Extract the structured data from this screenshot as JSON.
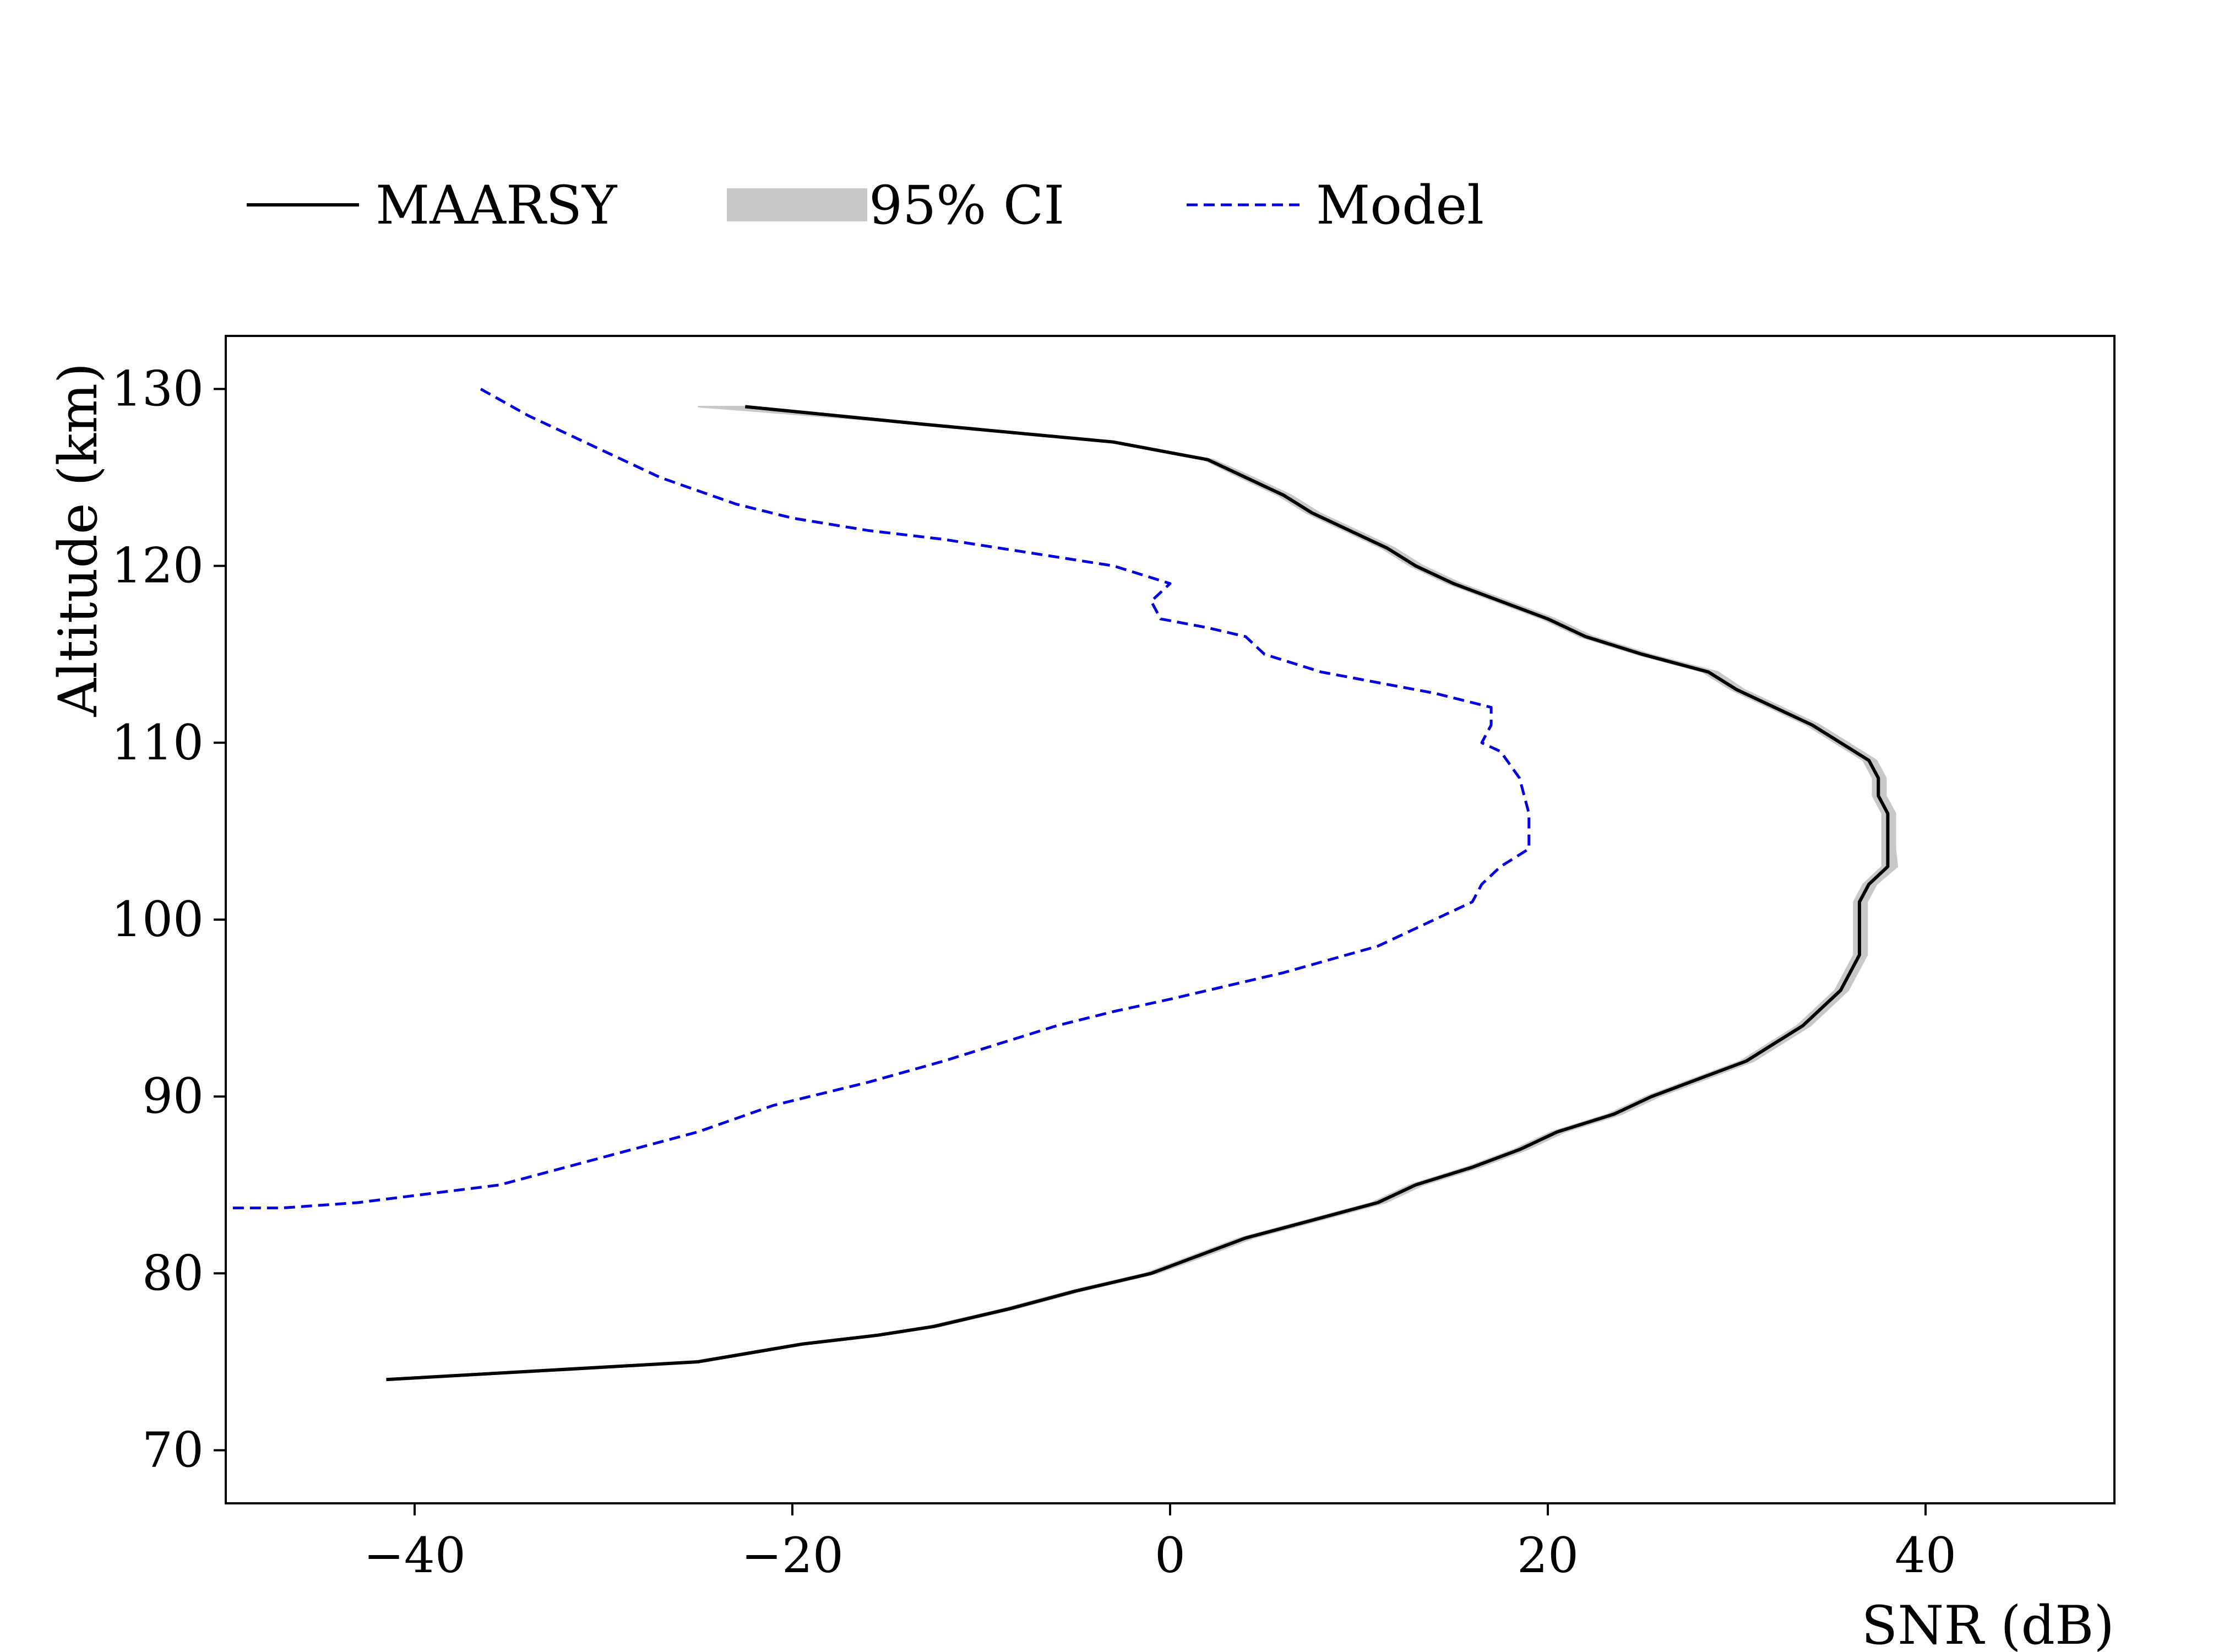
{
  "chart_data": {
    "type": "line",
    "title": "",
    "xlabel": "SNR (dB)",
    "ylabel": "Altitude (km)",
    "xlim": [
      -50,
      50
    ],
    "ylim": [
      67,
      133
    ],
    "xticks": [
      -40,
      -20,
      0,
      20,
      40
    ],
    "xtick_labels": [
      "−40",
      "−20",
      "0",
      "20",
      "40"
    ],
    "yticks": [
      70,
      80,
      90,
      100,
      110,
      120,
      130
    ],
    "ytick_labels": [
      "70",
      "80",
      "90",
      "100",
      "110",
      "120",
      "130"
    ],
    "grid": false,
    "legend_position": "top, outside plot",
    "legend": [
      {
        "key": "maarsy",
        "label": "MAARSY",
        "style": "solid",
        "color": "#000000"
      },
      {
        "key": "ci",
        "label": "95% CI",
        "style": "band",
        "color": "#c8c8c8"
      },
      {
        "key": "model",
        "label": "Model",
        "style": "dashed",
        "color": "#0000e0"
      }
    ],
    "series": [
      {
        "name": "MAARSY",
        "color": "#000000",
        "points": [
          [
            -22.5,
            129
          ],
          [
            -13,
            128
          ],
          [
            -3,
            127
          ],
          [
            2,
            126
          ],
          [
            4,
            125
          ],
          [
            6,
            124
          ],
          [
            7.5,
            123
          ],
          [
            9.5,
            122
          ],
          [
            11.5,
            121
          ],
          [
            13,
            120
          ],
          [
            15,
            119
          ],
          [
            17.5,
            118
          ],
          [
            20,
            117
          ],
          [
            22,
            116
          ],
          [
            25,
            115
          ],
          [
            28.5,
            114
          ],
          [
            30,
            113
          ],
          [
            32,
            112
          ],
          [
            34,
            111
          ],
          [
            35.5,
            110
          ],
          [
            37,
            109
          ],
          [
            37.5,
            108
          ],
          [
            37.5,
            107
          ],
          [
            38,
            106
          ],
          [
            38,
            105
          ],
          [
            38,
            104
          ],
          [
            38,
            103
          ],
          [
            37,
            102
          ],
          [
            36.5,
            101
          ],
          [
            36.5,
            100
          ],
          [
            36.5,
            99
          ],
          [
            36.5,
            98
          ],
          [
            36,
            97
          ],
          [
            35.5,
            96
          ],
          [
            34.5,
            95
          ],
          [
            33.5,
            94
          ],
          [
            32,
            93
          ],
          [
            30.5,
            92
          ],
          [
            28,
            91
          ],
          [
            25.5,
            90
          ],
          [
            23.5,
            89
          ],
          [
            20.5,
            88
          ],
          [
            18.5,
            87
          ],
          [
            16,
            86
          ],
          [
            13,
            85
          ],
          [
            11,
            84
          ],
          [
            7.5,
            83
          ],
          [
            4,
            82
          ],
          [
            1.5,
            81
          ],
          [
            -1,
            80
          ],
          [
            -3,
            79.5
          ],
          [
            -5,
            79
          ],
          [
            -8.5,
            78
          ],
          [
            -12.5,
            77
          ],
          [
            -15.5,
            76.5
          ],
          [
            -19.5,
            76
          ],
          [
            -25,
            75
          ],
          [
            -41.5,
            74
          ]
        ]
      },
      {
        "name": "95% CI",
        "color": "#c8c8c8",
        "lower": [
          [
            -25,
            129
          ],
          [
            -13,
            128
          ],
          [
            -3,
            127
          ],
          [
            1.8,
            126
          ],
          [
            3.7,
            125
          ],
          [
            5.7,
            124
          ],
          [
            7.2,
            123
          ],
          [
            9.2,
            122
          ],
          [
            11.2,
            121
          ],
          [
            12.7,
            120
          ],
          [
            14.7,
            119
          ],
          [
            17.2,
            118
          ],
          [
            19.7,
            117
          ],
          [
            21.7,
            116
          ],
          [
            24.7,
            115
          ],
          [
            28.2,
            114
          ],
          [
            29.7,
            113
          ],
          [
            31.7,
            112
          ],
          [
            33.7,
            111
          ],
          [
            35.2,
            110
          ],
          [
            36.7,
            109
          ],
          [
            37.2,
            108
          ],
          [
            37.2,
            107
          ],
          [
            37.7,
            106
          ],
          [
            37.7,
            105
          ],
          [
            37.7,
            104
          ],
          [
            37.7,
            103
          ],
          [
            36.7,
            102
          ],
          [
            36.2,
            101
          ],
          [
            36.2,
            100
          ],
          [
            36.2,
            99
          ],
          [
            36.2,
            98
          ],
          [
            35.7,
            97
          ],
          [
            35.2,
            96
          ],
          [
            34.2,
            95
          ],
          [
            33.2,
            94
          ],
          [
            31.7,
            93
          ],
          [
            30.2,
            92
          ],
          [
            27.7,
            91
          ],
          [
            25.2,
            90
          ],
          [
            23.2,
            89
          ],
          [
            20.2,
            88
          ],
          [
            18.2,
            87
          ],
          [
            15.7,
            86
          ],
          [
            12.7,
            85
          ],
          [
            10.7,
            84
          ],
          [
            7.2,
            83
          ],
          [
            3.7,
            82
          ],
          [
            1.2,
            81
          ],
          [
            -1.3,
            80
          ],
          [
            -3.3,
            79.5
          ],
          [
            -5.3,
            79
          ],
          [
            -8.8,
            78
          ],
          [
            -12.8,
            77
          ],
          [
            -15.8,
            76.5
          ],
          [
            -19.8,
            76
          ],
          [
            -25.3,
            75
          ],
          [
            -41.5,
            74
          ]
        ],
        "upper": [
          [
            -22.5,
            129
          ],
          [
            -13,
            128
          ],
          [
            -3,
            127
          ],
          [
            2.3,
            126
          ],
          [
            4.4,
            125
          ],
          [
            6.4,
            124
          ],
          [
            7.9,
            123
          ],
          [
            9.9,
            122
          ],
          [
            11.9,
            121
          ],
          [
            13.4,
            120
          ],
          [
            15.4,
            119
          ],
          [
            17.9,
            118
          ],
          [
            20.4,
            117
          ],
          [
            22.4,
            116
          ],
          [
            25.4,
            115
          ],
          [
            29,
            114
          ],
          [
            30.4,
            113
          ],
          [
            32.4,
            112
          ],
          [
            34.4,
            111
          ],
          [
            35.9,
            110
          ],
          [
            37.4,
            109
          ],
          [
            37.9,
            108
          ],
          [
            37.9,
            107
          ],
          [
            38.4,
            106
          ],
          [
            38.4,
            105
          ],
          [
            38.4,
            104
          ],
          [
            38.5,
            103
          ],
          [
            37.4,
            102
          ],
          [
            36.9,
            101
          ],
          [
            36.9,
            100
          ],
          [
            36.9,
            99
          ],
          [
            36.9,
            98
          ],
          [
            36.4,
            97
          ],
          [
            35.9,
            96
          ],
          [
            34.9,
            95
          ],
          [
            33.9,
            94
          ],
          [
            32.4,
            93
          ],
          [
            30.9,
            92
          ],
          [
            28.4,
            91
          ],
          [
            25.9,
            90
          ],
          [
            23.9,
            89
          ],
          [
            20.9,
            88
          ],
          [
            18.9,
            87
          ],
          [
            16.4,
            86
          ],
          [
            13.4,
            85
          ],
          [
            11.4,
            84
          ],
          [
            7.9,
            83
          ],
          [
            4.4,
            82
          ],
          [
            1.9,
            81
          ],
          [
            -0.7,
            80
          ],
          [
            -2.7,
            79.5
          ],
          [
            -4.7,
            79
          ],
          [
            -8.2,
            78
          ],
          [
            -12.2,
            77
          ],
          [
            -15.2,
            76.5
          ],
          [
            -19.2,
            76
          ],
          [
            -24.7,
            75
          ],
          [
            -41.5,
            74
          ]
        ]
      },
      {
        "name": "Model",
        "color": "#0000e0",
        "points": [
          [
            -36.5,
            130
          ],
          [
            -34,
            128.5
          ],
          [
            -30,
            126.5
          ],
          [
            -27,
            125
          ],
          [
            -23,
            123.5
          ],
          [
            -20,
            122.7
          ],
          [
            -16,
            122
          ],
          [
            -12,
            121.5
          ],
          [
            -9,
            121
          ],
          [
            -6,
            120.5
          ],
          [
            -3,
            120
          ],
          [
            -1.5,
            119.5
          ],
          [
            0,
            119
          ],
          [
            -1,
            118
          ],
          [
            -0.5,
            117
          ],
          [
            2,
            116.5
          ],
          [
            4,
            116
          ],
          [
            5,
            115
          ],
          [
            8,
            114
          ],
          [
            12,
            113.2
          ],
          [
            14,
            112.8
          ],
          [
            17,
            112
          ],
          [
            17,
            111
          ],
          [
            16.5,
            110
          ],
          [
            17.5,
            109.5
          ],
          [
            18.5,
            108
          ],
          [
            19,
            106
          ],
          [
            19,
            104
          ],
          [
            17.5,
            103
          ],
          [
            16.5,
            102
          ],
          [
            16,
            101
          ],
          [
            14,
            100
          ],
          [
            11,
            98.5
          ],
          [
            6,
            97
          ],
          [
            2,
            96
          ],
          [
            0,
            95.5
          ],
          [
            -3,
            94.8
          ],
          [
            -6,
            94
          ],
          [
            -9,
            93
          ],
          [
            -12,
            92
          ],
          [
            -16,
            90.8
          ],
          [
            -21,
            89.5
          ],
          [
            -25,
            88
          ],
          [
            -32,
            86
          ],
          [
            -35.5,
            85
          ],
          [
            -43,
            84
          ],
          [
            -47,
            83.7
          ],
          [
            -50,
            83.7
          ]
        ]
      }
    ]
  }
}
